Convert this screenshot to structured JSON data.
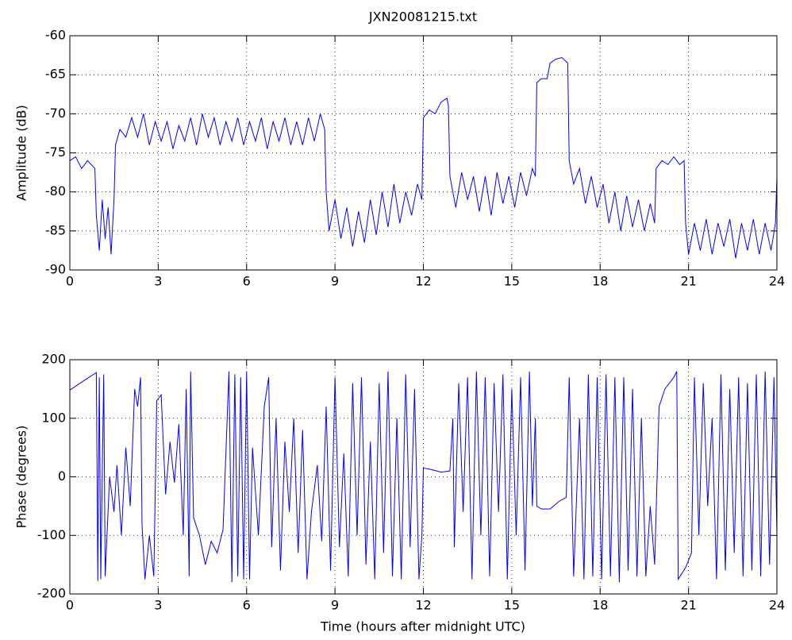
{
  "chart_data": [
    {
      "type": "line",
      "title": "JXN20081215.txt",
      "ylabel": "Amplitude (dB)",
      "color": "#0000ff",
      "grid": true,
      "xlim": [
        0,
        24
      ],
      "xticks": [
        0,
        3,
        6,
        9,
        12,
        15,
        18,
        21,
        24
      ],
      "ylim": [
        -90,
        -60
      ],
      "yticks": [
        -90,
        -85,
        -80,
        -75,
        -70,
        -65,
        -60
      ],
      "x": [
        0,
        0.2,
        0.4,
        0.6,
        0.85,
        0.9,
        1.0,
        1.1,
        1.2,
        1.3,
        1.4,
        1.5,
        1.55,
        1.7,
        1.9,
        2.1,
        2.3,
        2.5,
        2.7,
        2.9,
        3.1,
        3.3,
        3.5,
        3.7,
        3.9,
        4.1,
        4.3,
        4.5,
        4.7,
        4.9,
        5.1,
        5.3,
        5.5,
        5.7,
        5.9,
        6.1,
        6.3,
        6.5,
        6.7,
        6.9,
        7.1,
        7.3,
        7.5,
        7.7,
        7.9,
        8.1,
        8.3,
        8.5,
        8.65,
        8.7,
        8.8,
        9.0,
        9.2,
        9.4,
        9.6,
        9.8,
        10.0,
        10.2,
        10.4,
        10.6,
        10.8,
        11.0,
        11.2,
        11.4,
        11.6,
        11.8,
        11.95,
        12.0,
        12.2,
        12.4,
        12.6,
        12.8,
        12.85,
        12.9,
        13.1,
        13.3,
        13.5,
        13.7,
        13.9,
        14.1,
        14.3,
        14.5,
        14.7,
        14.9,
        15.1,
        15.3,
        15.5,
        15.7,
        15.8,
        15.85,
        16.0,
        16.2,
        16.3,
        16.5,
        16.7,
        16.9,
        16.95,
        17.1,
        17.3,
        17.5,
        17.7,
        17.9,
        18.1,
        18.3,
        18.5,
        18.7,
        18.9,
        19.1,
        19.3,
        19.5,
        19.7,
        19.85,
        19.9,
        20.1,
        20.3,
        20.5,
        20.7,
        20.85,
        20.9,
        21.0,
        21.2,
        21.4,
        21.6,
        21.8,
        22.0,
        22.2,
        22.4,
        22.6,
        22.8,
        23.0,
        23.2,
        23.4,
        23.6,
        23.8,
        23.95,
        24
      ],
      "values": [
        -76,
        -75.5,
        -77,
        -76,
        -77,
        -83,
        -87.5,
        -81,
        -86,
        -82,
        -88,
        -81,
        -74,
        -72,
        -73,
        -70.5,
        -73,
        -70,
        -74,
        -71,
        -73.5,
        -71,
        -74.5,
        -71.5,
        -73.5,
        -70.5,
        -74,
        -70,
        -73,
        -70.5,
        -74,
        -71,
        -73.5,
        -70.5,
        -74,
        -71,
        -73.5,
        -70.5,
        -74.5,
        -71,
        -73.5,
        -70.5,
        -74,
        -71,
        -74,
        -70.5,
        -73.5,
        -70,
        -72,
        -80,
        -85,
        -81,
        -86,
        -82,
        -87,
        -82.5,
        -86.5,
        -81,
        -85.5,
        -80,
        -84.5,
        -79,
        -84,
        -80,
        -83,
        -79,
        -81,
        -70.5,
        -69.5,
        -70,
        -68.5,
        -68,
        -69,
        -78,
        -82,
        -77.5,
        -81,
        -78,
        -82.5,
        -78,
        -83,
        -77.5,
        -81.5,
        -78,
        -82,
        -77.5,
        -80.5,
        -77,
        -78,
        -66,
        -65.5,
        -65.5,
        -63.5,
        -63,
        -62.8,
        -63.5,
        -76,
        -79,
        -77,
        -81.5,
        -78,
        -82,
        -79,
        -84,
        -80,
        -85,
        -80.5,
        -84.5,
        -81,
        -85,
        -81.5,
        -84,
        -77,
        -76,
        -76.5,
        -75.5,
        -76.5,
        -76,
        -84,
        -88,
        -84,
        -87.5,
        -83.5,
        -88,
        -84,
        -87,
        -83.5,
        -88.5,
        -84,
        -87.5,
        -83.5,
        -88,
        -84,
        -87.5,
        -84,
        -78
      ]
    },
    {
      "type": "line",
      "ylabel": "Phase (degrees)",
      "xlabel": "Time (hours after midnight UTC)",
      "color": "#0000ff",
      "grid": true,
      "xlim": [
        0,
        24
      ],
      "xticks": [
        0,
        3,
        6,
        9,
        12,
        15,
        18,
        21,
        24
      ],
      "ylim": [
        -200,
        200
      ],
      "yticks": [
        -200,
        -100,
        0,
        100,
        200
      ],
      "x": [
        0,
        0.5,
        0.9,
        0.95,
        1.0,
        1.05,
        1.15,
        1.2,
        1.35,
        1.5,
        1.6,
        1.75,
        1.9,
        2.05,
        2.2,
        2.3,
        2.4,
        2.45,
        2.55,
        2.7,
        2.85,
        2.95,
        3.1,
        3.25,
        3.4,
        3.55,
        3.7,
        3.85,
        3.95,
        4.05,
        4.1,
        4.2,
        4.4,
        4.6,
        4.8,
        5.0,
        5.2,
        5.4,
        5.5,
        5.6,
        5.7,
        5.8,
        5.9,
        6.0,
        6.1,
        6.2,
        6.4,
        6.6,
        6.75,
        6.85,
        7.0,
        7.15,
        7.3,
        7.45,
        7.6,
        7.75,
        7.9,
        8.05,
        8.2,
        8.4,
        8.55,
        8.7,
        8.85,
        9.0,
        9.15,
        9.3,
        9.45,
        9.6,
        9.75,
        9.9,
        10.05,
        10.2,
        10.35,
        10.5,
        10.65,
        10.8,
        10.95,
        11.1,
        11.25,
        11.4,
        11.55,
        11.7,
        11.85,
        11.95,
        12.0,
        12.3,
        12.6,
        12.9,
        13.0,
        13.05,
        13.2,
        13.35,
        13.5,
        13.65,
        13.8,
        13.95,
        14.1,
        14.25,
        14.4,
        14.55,
        14.7,
        14.85,
        15.0,
        15.15,
        15.3,
        15.45,
        15.6,
        15.7,
        15.8,
        15.85,
        16.0,
        16.3,
        16.6,
        16.85,
        16.95,
        17.1,
        17.3,
        17.45,
        17.6,
        17.75,
        17.9,
        18.05,
        18.2,
        18.35,
        18.5,
        18.65,
        18.8,
        18.95,
        19.1,
        19.25,
        19.4,
        19.55,
        19.7,
        19.85,
        20.0,
        20.2,
        20.5,
        20.6,
        20.65,
        20.9,
        21.1,
        21.2,
        21.35,
        21.5,
        21.65,
        21.8,
        21.95,
        22.1,
        22.25,
        22.4,
        22.55,
        22.7,
        22.85,
        23.0,
        23.15,
        23.3,
        23.45,
        23.6,
        23.75,
        23.9,
        24
      ],
      "values": [
        148,
        165,
        178,
        -178,
        170,
        -175,
        175,
        -170,
        0,
        -60,
        20,
        -100,
        50,
        -50,
        150,
        120,
        170,
        -80,
        -175,
        -100,
        -170,
        130,
        140,
        -30,
        60,
        -10,
        90,
        -100,
        150,
        -170,
        180,
        -70,
        -100,
        -150,
        -110,
        -130,
        -90,
        180,
        -180,
        175,
        -170,
        170,
        -175,
        180,
        -175,
        50,
        -100,
        120,
        170,
        -120,
        100,
        -160,
        60,
        -60,
        100,
        -130,
        80,
        -175,
        -60,
        20,
        -110,
        120,
        -160,
        170,
        -120,
        40,
        -170,
        160,
        -100,
        170,
        -150,
        60,
        -175,
        160,
        -130,
        180,
        -170,
        100,
        -175,
        175,
        -120,
        150,
        -175,
        -100,
        15,
        12,
        8,
        10,
        100,
        -120,
        160,
        -60,
        170,
        -175,
        180,
        -100,
        170,
        -170,
        160,
        -60,
        175,
        -175,
        150,
        -100,
        170,
        -160,
        180,
        -50,
        100,
        -50,
        -55,
        -55,
        -42,
        -35,
        170,
        -170,
        100,
        -175,
        175,
        -170,
        170,
        -175,
        175,
        -170,
        170,
        -180,
        170,
        -160,
        150,
        -170,
        100,
        -170,
        -50,
        -150,
        120,
        150,
        170,
        180,
        -175,
        -155,
        -130,
        170,
        -100,
        160,
        -50,
        100,
        -175,
        175,
        -160,
        150,
        -130,
        170,
        -170,
        160,
        -160,
        175,
        -170,
        180,
        -150,
        170,
        -100
      ]
    }
  ]
}
